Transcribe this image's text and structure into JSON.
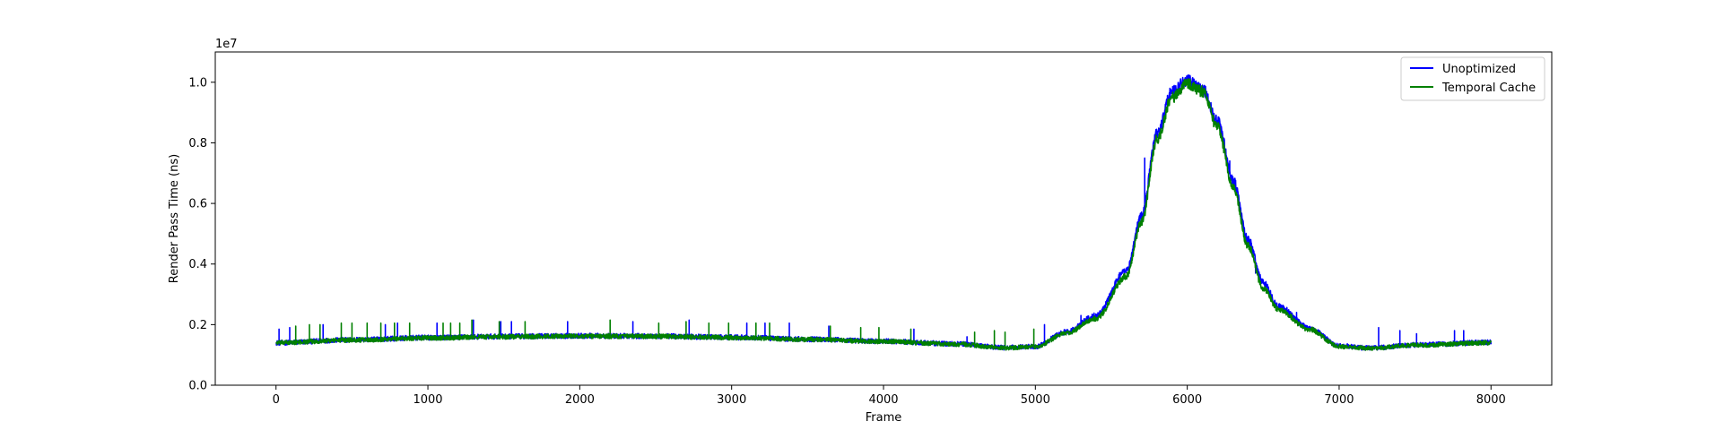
{
  "chart_data": {
    "type": "line",
    "title": "",
    "xlabel": "Frame",
    "ylabel": "Render Pass Time (ns)",
    "y_offset_label": "1e7",
    "xlim": [
      -400,
      8400
    ],
    "ylim": [
      0,
      11000000.0
    ],
    "x_ticks": [
      0,
      1000,
      2000,
      3000,
      4000,
      5000,
      6000,
      7000,
      8000
    ],
    "y_ticks": [
      0,
      2000000,
      4000000,
      6000000,
      8000000,
      10000000
    ],
    "y_tick_labels": [
      "0.0",
      "0.2",
      "0.4",
      "0.6",
      "0.8",
      "1.0"
    ],
    "grid": false,
    "legend_position": "top-right",
    "x_range": [
      0,
      8000
    ],
    "series": [
      {
        "name": "Unoptimized",
        "color": "#0000ff",
        "x": [
          0,
          500,
          1000,
          1500,
          2000,
          2500,
          3000,
          3500,
          4000,
          4500,
          4800,
          5000,
          5200,
          5400,
          5600,
          5700,
          5800,
          5900,
          6000,
          6100,
          6200,
          6300,
          6400,
          6500,
          6600,
          6800,
          7000,
          7200,
          7500,
          8000
        ],
        "y": [
          1400000,
          1500000,
          1570000,
          1610000,
          1630000,
          1620000,
          1580000,
          1520000,
          1450000,
          1360000,
          1240000,
          1280000,
          1750000,
          2300000,
          3800000,
          5600000,
          8300000,
          9700000,
          10050000,
          9800000,
          8700000,
          6800000,
          4800000,
          3400000,
          2600000,
          1900000,
          1300000,
          1230000,
          1330000,
          1420000
        ],
        "spike_frames": [
          20,
          90,
          310,
          720,
          800,
          1060,
          1300,
          1480,
          1550,
          1920,
          2350,
          2720,
          3100,
          3220,
          3380,
          3640,
          4200,
          4550,
          5060,
          5300,
          5720,
          6280,
          6450,
          6720,
          7260,
          7400,
          7510,
          7760,
          7820
        ],
        "spike_values": [
          1850000,
          1900000,
          2000000,
          2000000,
          2050000,
          2050000,
          2150000,
          2100000,
          2100000,
          2100000,
          2100000,
          2150000,
          2050000,
          2050000,
          2050000,
          1950000,
          1850000,
          1600000,
          2000000,
          2300000,
          7500000,
          7400000,
          3700000,
          2400000,
          1900000,
          1800000,
          1700000,
          1800000,
          1800000
        ],
        "noise_amplitude": 60000
      },
      {
        "name": "Temporal Cache",
        "color": "#008000",
        "x": [
          0,
          500,
          1000,
          1500,
          2000,
          2500,
          3000,
          3500,
          4000,
          4500,
          4800,
          5000,
          5200,
          5400,
          5600,
          5700,
          5800,
          5900,
          6000,
          6100,
          6200,
          6300,
          6400,
          6500,
          6600,
          6800,
          7000,
          7200,
          7500,
          8000
        ],
        "y": [
          1400000,
          1490000,
          1560000,
          1600000,
          1620000,
          1610000,
          1570000,
          1510000,
          1440000,
          1350000,
          1230000,
          1270000,
          1700000,
          2200000,
          3600000,
          5400000,
          8100000,
          9500000,
          9950000,
          9700000,
          8500000,
          6600000,
          4600000,
          3200000,
          2500000,
          1850000,
          1280000,
          1220000,
          1320000,
          1400000
        ],
        "spike_frames": [
          130,
          220,
          290,
          430,
          500,
          600,
          690,
          780,
          880,
          1100,
          1150,
          1210,
          1290,
          1470,
          1640,
          2200,
          2520,
          2700,
          2850,
          2980,
          3160,
          3250,
          3650,
          3850,
          3970,
          4180,
          4600,
          4730,
          4800,
          4990
        ],
        "spike_values": [
          1950000,
          2000000,
          2000000,
          2050000,
          2050000,
          2050000,
          2050000,
          2050000,
          2050000,
          2050000,
          2050000,
          2050000,
          2150000,
          2100000,
          2100000,
          2150000,
          2050000,
          2100000,
          2050000,
          2050000,
          2050000,
          2050000,
          1950000,
          1900000,
          1900000,
          1850000,
          1750000,
          1800000,
          1750000,
          1850000
        ],
        "noise_amplitude": 55000
      }
    ]
  }
}
